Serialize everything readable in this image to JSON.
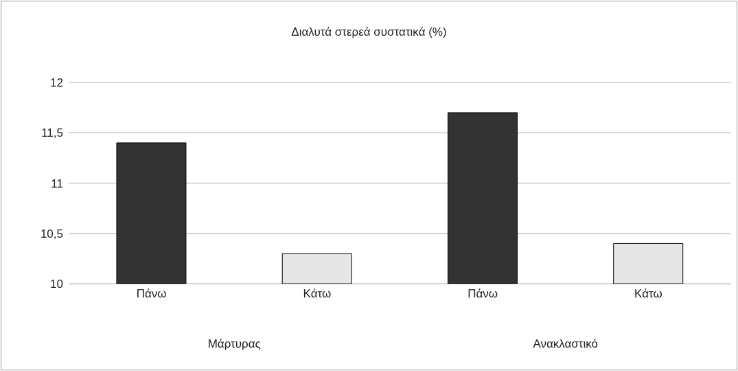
{
  "chart_data": {
    "type": "bar",
    "title": "Διαλυτά στερεά συστατικά (%)",
    "categories": [
      "Πάνω",
      "Κάτω",
      "Πάνω",
      "Κάτω"
    ],
    "values": [
      11.4,
      10.3,
      11.7,
      10.4
    ],
    "colors": [
      "#333333",
      "#e6e6e6",
      "#333333",
      "#e6e6e6"
    ],
    "ylim": [
      10,
      12
    ],
    "yticks": [
      10,
      {
        "value": 10.5,
        "label": "10,5"
      },
      11,
      {
        "value": 11.5,
        "label": "11,5"
      },
      12
    ],
    "grid": "y",
    "annotations": [
      "Μάρτυρας",
      "Ανακλαστικό"
    ]
  }
}
